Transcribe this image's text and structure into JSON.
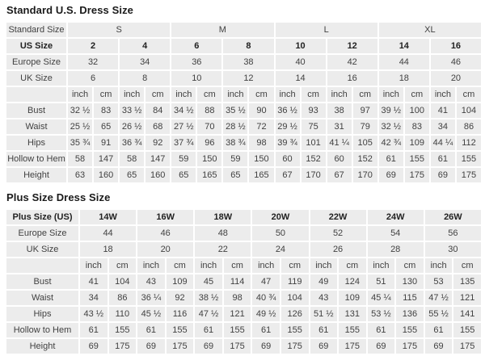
{
  "colors": {
    "cell_background": "#ececec",
    "grid_lines": "#ffffff",
    "text": "#414141",
    "bold_text": "#222222",
    "title_text": "#1a1a1a"
  },
  "chart_data": [
    {
      "type": "table",
      "title": "Standard U.S. Dress Size",
      "group_header": {
        "label": "Standard Size",
        "groups": [
          {
            "label": "S",
            "span": 2
          },
          {
            "label": "M",
            "span": 2
          },
          {
            "label": "L",
            "span": 2
          },
          {
            "label": "XL",
            "span": 2
          }
        ]
      },
      "size_header": {
        "label": "US Size",
        "sizes": [
          "2",
          "4",
          "6",
          "8",
          "10",
          "12",
          "14",
          "16"
        ]
      },
      "conversion_rows": [
        {
          "label": "Europe Size",
          "values": [
            "32",
            "34",
            "36",
            "38",
            "40",
            "42",
            "44",
            "46"
          ]
        },
        {
          "label": "UK Size",
          "values": [
            "6",
            "8",
            "10",
            "12",
            "14",
            "16",
            "18",
            "20"
          ]
        }
      ],
      "unit_header": {
        "units": [
          "inch",
          "cm"
        ]
      },
      "measurement_rows": [
        {
          "label": "Bust",
          "values": [
            [
              "32 ½",
              "83"
            ],
            [
              "33 ½",
              "84"
            ],
            [
              "34 ½",
              "88"
            ],
            [
              "35 ½",
              "90"
            ],
            [
              "36 ½",
              "93"
            ],
            [
              "38",
              "97"
            ],
            [
              "39 ½",
              "100"
            ],
            [
              "41",
              "104"
            ]
          ]
        },
        {
          "label": "Waist",
          "values": [
            [
              "25 ½",
              "65"
            ],
            [
              "26 ½",
              "68"
            ],
            [
              "27 ½",
              "70"
            ],
            [
              "28 ½",
              "72"
            ],
            [
              "29 ½",
              "75"
            ],
            [
              "31",
              "79"
            ],
            [
              "32 ½",
              "83"
            ],
            [
              "34",
              "86"
            ]
          ]
        },
        {
          "label": "Hips",
          "values": [
            [
              "35 ¾",
              "91"
            ],
            [
              "36 ¾",
              "92"
            ],
            [
              "37 ¾",
              "96"
            ],
            [
              "38 ¾",
              "98"
            ],
            [
              "39 ¾",
              "101"
            ],
            [
              "41 ¼",
              "105"
            ],
            [
              "42 ¾",
              "109"
            ],
            [
              "44 ¼",
              "112"
            ]
          ]
        },
        {
          "label": "Hollow to Hem",
          "values": [
            [
              "58",
              "147"
            ],
            [
              "58",
              "147"
            ],
            [
              "59",
              "150"
            ],
            [
              "59",
              "150"
            ],
            [
              "60",
              "152"
            ],
            [
              "60",
              "152"
            ],
            [
              "61",
              "155"
            ],
            [
              "61",
              "155"
            ]
          ]
        },
        {
          "label": "Height",
          "values": [
            [
              "63",
              "160"
            ],
            [
              "65",
              "160"
            ],
            [
              "65",
              "165"
            ],
            [
              "65",
              "165"
            ],
            [
              "67",
              "170"
            ],
            [
              "67",
              "170"
            ],
            [
              "69",
              "175"
            ],
            [
              "69",
              "175"
            ]
          ]
        }
      ]
    },
    {
      "type": "table",
      "title": "Plus Size Dress Size",
      "size_header": {
        "label": "Plus Size (US)",
        "sizes": [
          "14W",
          "16W",
          "18W",
          "20W",
          "22W",
          "24W",
          "26W"
        ]
      },
      "conversion_rows": [
        {
          "label": "Europe Size",
          "values": [
            "44",
            "46",
            "48",
            "50",
            "52",
            "54",
            "56"
          ]
        },
        {
          "label": "UK Size",
          "values": [
            "18",
            "20",
            "22",
            "24",
            "26",
            "28",
            "30"
          ]
        }
      ],
      "unit_header": {
        "units": [
          "inch",
          "cm"
        ]
      },
      "measurement_rows": [
        {
          "label": "Bust",
          "values": [
            [
              "41",
              "104"
            ],
            [
              "43",
              "109"
            ],
            [
              "45",
              "114"
            ],
            [
              "47",
              "119"
            ],
            [
              "49",
              "124"
            ],
            [
              "51",
              "130"
            ],
            [
              "53",
              "135"
            ]
          ]
        },
        {
          "label": "Waist",
          "values": [
            [
              "34",
              "86"
            ],
            [
              "36 ¼",
              "92"
            ],
            [
              "38 ½",
              "98"
            ],
            [
              "40 ¾",
              "104"
            ],
            [
              "43",
              "109"
            ],
            [
              "45 ¼",
              "115"
            ],
            [
              "47 ½",
              "121"
            ]
          ]
        },
        {
          "label": "Hips",
          "values": [
            [
              "43 ½",
              "110"
            ],
            [
              "45 ½",
              "116"
            ],
            [
              "47 ½",
              "121"
            ],
            [
              "49 ½",
              "126"
            ],
            [
              "51 ½",
              "131"
            ],
            [
              "53 ½",
              "136"
            ],
            [
              "55 ½",
              "141"
            ]
          ]
        },
        {
          "label": "Hollow to Hem",
          "values": [
            [
              "61",
              "155"
            ],
            [
              "61",
              "155"
            ],
            [
              "61",
              "155"
            ],
            [
              "61",
              "155"
            ],
            [
              "61",
              "155"
            ],
            [
              "61",
              "155"
            ],
            [
              "61",
              "155"
            ]
          ]
        },
        {
          "label": "Height",
          "values": [
            [
              "69",
              "175"
            ],
            [
              "69",
              "175"
            ],
            [
              "69",
              "175"
            ],
            [
              "69",
              "175"
            ],
            [
              "69",
              "175"
            ],
            [
              "69",
              "175"
            ],
            [
              "69",
              "175"
            ]
          ]
        }
      ]
    }
  ]
}
